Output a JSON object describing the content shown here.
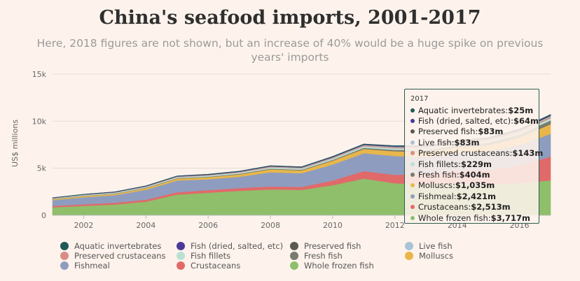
{
  "title": "China's seafood imports, 2001-2017",
  "subtitle": "Here, 2018 figures are not shown, but an increase of 40% would be a huge spike on previous years' imports",
  "colors": {
    "background": "#fdf3ec",
    "grid": "#e8dcd3"
  },
  "chart_data": {
    "type": "area",
    "stacked": true,
    "ylabel": "US$ millions",
    "xlabel": "",
    "ylim": [
      0,
      15000
    ],
    "y_ticks": [
      0,
      5000,
      10000,
      15000
    ],
    "y_tick_labels": [
      "0",
      "5k",
      "10k",
      "15k"
    ],
    "x_ticks": [
      2002,
      2004,
      2006,
      2008,
      2010,
      2012,
      2014,
      2016
    ],
    "x_tick_labels": [
      "2002",
      "2004",
      "2006",
      "2008",
      "2010",
      "2012",
      "2014",
      "2016"
    ],
    "xlim": [
      2001,
      2017
    ],
    "legend_position": "bottom",
    "x": [
      2001,
      2002,
      2003,
      2004,
      2005,
      2006,
      2007,
      2008,
      2009,
      2010,
      2011,
      2012,
      2013,
      2014,
      2015,
      2016,
      2017
    ],
    "series": [
      {
        "name": "Whole frozen fish",
        "color": "#8fbf6a",
        "values": [
          850,
          1000,
          1150,
          1450,
          2200,
          2400,
          2600,
          2750,
          2700,
          3200,
          3900,
          3400,
          3300,
          3400,
          3300,
          3400,
          3717
        ]
      },
      {
        "name": "Crustaceans",
        "color": "#e06a6a",
        "values": [
          150,
          170,
          190,
          210,
          250,
          280,
          300,
          320,
          320,
          500,
          800,
          900,
          1100,
          1300,
          1500,
          1900,
          2513
        ]
      },
      {
        "name": "Fishmeal",
        "color": "#8e9dbf",
        "values": [
          600,
          750,
          800,
          1050,
          1250,
          1150,
          1200,
          1500,
          1450,
          1700,
          1900,
          2000,
          1800,
          1900,
          2000,
          2150,
          2421
        ]
      },
      {
        "name": "Molluscs",
        "color": "#e8b64a",
        "values": [
          100,
          120,
          130,
          170,
          200,
          220,
          250,
          320,
          300,
          400,
          450,
          500,
          550,
          600,
          650,
          800,
          1035
        ]
      },
      {
        "name": "Fresh fish",
        "color": "#7a7a6e",
        "values": [
          30,
          35,
          40,
          45,
          50,
          55,
          60,
          70,
          70,
          90,
          120,
          150,
          180,
          220,
          260,
          320,
          404
        ]
      },
      {
        "name": "Fish fillets",
        "color": "#b9e0d3",
        "values": [
          60,
          70,
          80,
          90,
          100,
          110,
          120,
          130,
          130,
          150,
          160,
          170,
          180,
          190,
          200,
          210,
          229
        ]
      },
      {
        "name": "Preserved crustaceans",
        "color": "#d98c86",
        "values": [
          20,
          25,
          30,
          35,
          40,
          45,
          50,
          60,
          60,
          70,
          80,
          90,
          100,
          110,
          120,
          130,
          143
        ]
      },
      {
        "name": "Live fish",
        "color": "#a9c3d6",
        "values": [
          20,
          22,
          25,
          28,
          30,
          33,
          36,
          40,
          42,
          48,
          55,
          60,
          65,
          70,
          75,
          80,
          83
        ]
      },
      {
        "name": "Preserved fish",
        "color": "#5a5a50",
        "values": [
          20,
          22,
          25,
          28,
          30,
          33,
          36,
          40,
          42,
          48,
          55,
          60,
          65,
          70,
          75,
          80,
          83
        ]
      },
      {
        "name": "Fish (dried, salted, etc)",
        "color": "#4a3b99",
        "values": [
          15,
          17,
          20,
          22,
          25,
          28,
          30,
          33,
          35,
          40,
          45,
          48,
          52,
          55,
          58,
          61,
          64
        ]
      },
      {
        "name": "Aquatic invertebrates",
        "color": "#1e5a56",
        "values": [
          5,
          6,
          7,
          8,
          9,
          10,
          11,
          12,
          12,
          14,
          16,
          18,
          19,
          20,
          22,
          23,
          25
        ]
      }
    ]
  },
  "legend": [
    {
      "label": "Aquatic invertebrates",
      "color": "#1e5a56"
    },
    {
      "label": "Fish (dried, salted, etc)",
      "color": "#4a3b99"
    },
    {
      "label": "Preserved fish",
      "color": "#5a5a50"
    },
    {
      "label": "Live fish",
      "color": "#a9c3d6"
    },
    {
      "label": "Preserved crustaceans",
      "color": "#d98c86"
    },
    {
      "label": "Fish fillets",
      "color": "#b9e0d3"
    },
    {
      "label": "Fresh fish",
      "color": "#7a7a6e"
    },
    {
      "label": "Molluscs",
      "color": "#e8b64a"
    },
    {
      "label": "Fishmeal",
      "color": "#8e9dbf"
    },
    {
      "label": "Crustaceans",
      "color": "#e06a6a"
    },
    {
      "label": "Whole frozen fish",
      "color": "#8fbf6a"
    }
  ],
  "tooltip": {
    "year": "2017",
    "rows": [
      {
        "label": "Aquatic invertebrates:",
        "value": "$25m",
        "color": "#1e5a56"
      },
      {
        "label": "Fish (dried, salted, etc):",
        "value": "$64m",
        "color": "#4a3b99"
      },
      {
        "label": "Preserved fish:",
        "value": "$83m",
        "color": "#5a5a50"
      },
      {
        "label": "Live fish:",
        "value": "$83m",
        "color": "#a9c3d6"
      },
      {
        "label": "Preserved crustaceans:",
        "value": "$143m",
        "color": "#d98c86"
      },
      {
        "label": "Fish fillets:",
        "value": "$229m",
        "color": "#b9e0d3"
      },
      {
        "label": "Fresh fish:",
        "value": "$404m",
        "color": "#7a7a6e"
      },
      {
        "label": "Molluscs:",
        "value": "$1,035m",
        "color": "#e8b64a"
      },
      {
        "label": "Fishmeal:",
        "value": "$2,421m",
        "color": "#8e9dbf"
      },
      {
        "label": "Crustaceans:",
        "value": "$2,513m",
        "color": "#e06a6a"
      },
      {
        "label": "Whole frozen fish:",
        "value": "$3,717m",
        "color": "#8fbf6a"
      }
    ]
  }
}
